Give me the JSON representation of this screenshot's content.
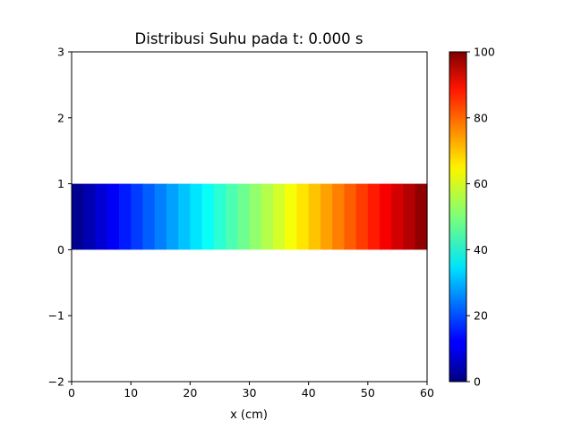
{
  "chart_data": {
    "type": "heatmap",
    "title": "Distribusi Suhu pada t: 0.000 s",
    "xlabel": "x (cm)",
    "ylabel": "",
    "xlim": [
      0,
      60
    ],
    "ylim": [
      -2,
      3
    ],
    "x_ticks": [
      "0",
      "10",
      "20",
      "30",
      "40",
      "50",
      "60"
    ],
    "y_ticks": [
      "−2",
      "−1",
      "0",
      "1",
      "2",
      "3"
    ],
    "grid": false,
    "colormap": "jet",
    "bar": {
      "x_start": 0,
      "x_end": 60,
      "y_bottom": 0,
      "y_top": 1
    },
    "temperature_profile": {
      "x": [
        0,
        2,
        4,
        6,
        8,
        10,
        12,
        14,
        16,
        18,
        20,
        22,
        24,
        26,
        28,
        30,
        32,
        34,
        36,
        38,
        40,
        42,
        44,
        46,
        48,
        50,
        52,
        54,
        56,
        58
      ],
      "values": [
        1.7,
        5,
        8.3,
        11.7,
        15,
        18.3,
        21.7,
        25,
        28.3,
        31.7,
        35,
        38.3,
        41.7,
        45,
        48.3,
        51.7,
        55,
        58.3,
        61.7,
        65,
        68.3,
        71.7,
        75,
        78.3,
        81.7,
        85,
        88.3,
        91.7,
        95,
        98.3
      ]
    },
    "colorbar": {
      "min": 0,
      "max": 100,
      "ticks": [
        "0",
        "20",
        "40",
        "60",
        "80",
        "100"
      ]
    }
  }
}
